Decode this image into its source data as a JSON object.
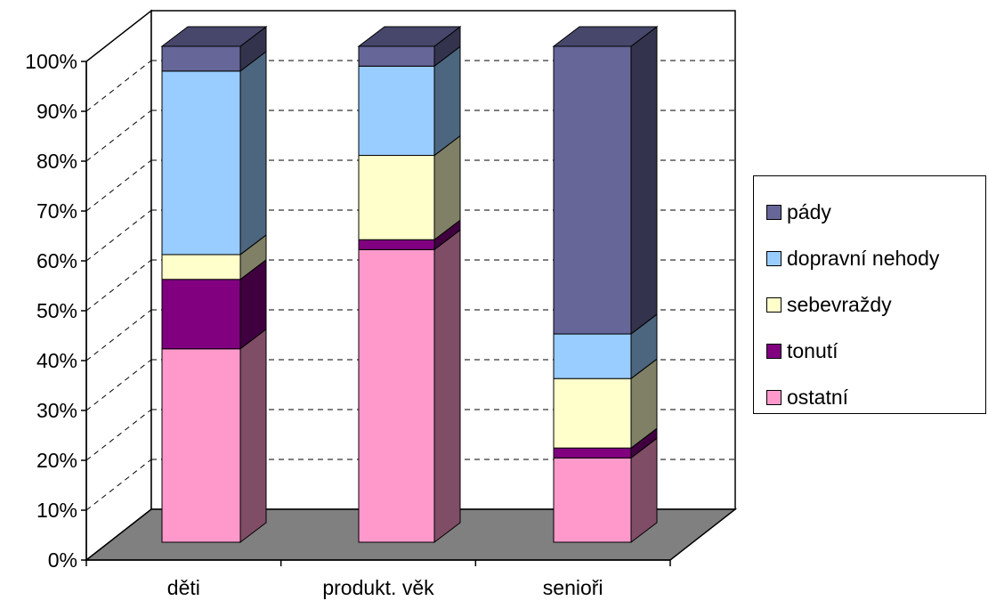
{
  "chart_data": {
    "type": "bar",
    "stacked": true,
    "percent_stacked": true,
    "three_d": true,
    "categories": [
      "děti",
      "produkt. věk",
      "senioři"
    ],
    "series": [
      {
        "name": "ostatní",
        "values": [
          39,
          59,
          17
        ],
        "color": "#ff99cc"
      },
      {
        "name": "tonutí",
        "values": [
          14,
          2,
          2
        ],
        "color": "#800080"
      },
      {
        "name": "sebevraždy",
        "values": [
          5,
          17,
          14
        ],
        "color": "#ffffcc"
      },
      {
        "name": "dopravní nehody",
        "values": [
          37,
          18,
          9
        ],
        "color": "#99ccff"
      },
      {
        "name": "pády",
        "values": [
          5,
          4,
          58
        ],
        "color": "#666699"
      }
    ],
    "y_ticks": [
      "0%",
      "10%",
      "20%",
      "30%",
      "40%",
      "50%",
      "60%",
      "70%",
      "80%",
      "90%",
      "100%"
    ],
    "ylim": [
      0,
      100
    ],
    "gridlines": true,
    "legend_position": "right",
    "floor_color": "#808080"
  }
}
